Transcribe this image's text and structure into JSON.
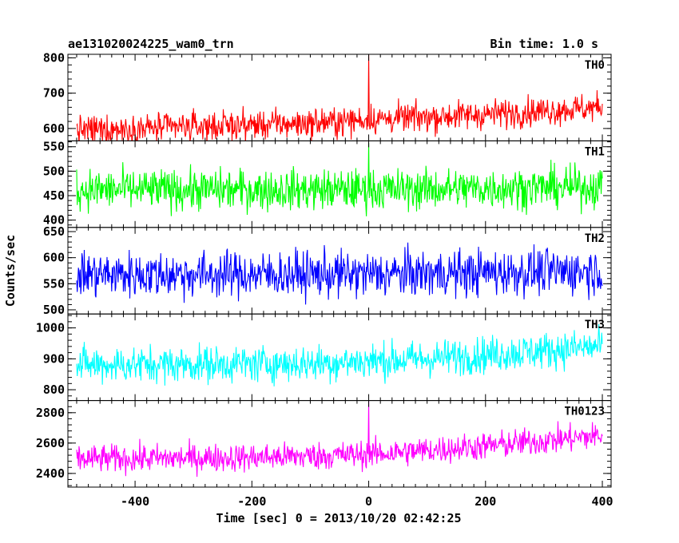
{
  "header": {
    "title": "ae131020024225_wam0_trn",
    "bin_time": "Bin time: 1.0 s"
  },
  "chart_data": {
    "type": "line",
    "xlabel": "Time [sec] 0 = 2013/10/20 02:42:25",
    "ylabel": "Counts/sec",
    "xlim": [
      -515,
      415
    ],
    "x_ticks": [
      -400,
      -200,
      0,
      200,
      400
    ],
    "x_range": [
      -500,
      400
    ],
    "x_step": 1,
    "grid": false,
    "panels": [
      {
        "name": "TH0",
        "color": "#ff0000",
        "ylim": [
          565,
          810
        ],
        "y_ticks": [
          600,
          700,
          800
        ],
        "trend": [
          [
            -500,
            595
          ],
          [
            -300,
            605
          ],
          [
            -100,
            615
          ],
          [
            0,
            625
          ],
          [
            200,
            640
          ],
          [
            400,
            660
          ]
        ],
        "noise": 28,
        "spike": {
          "x": 0,
          "value": 810
        }
      },
      {
        "name": "TH1",
        "color": "#00ff00",
        "ylim": [
          385,
          562
        ],
        "y_ticks": [
          400,
          450,
          500,
          550
        ],
        "trend": [
          [
            -500,
            462
          ],
          [
            0,
            462
          ],
          [
            400,
            468
          ]
        ],
        "noise": 28,
        "spike": {
          "x": 0,
          "value": 558
        }
      },
      {
        "name": "TH2",
        "color": "#0000ff",
        "ylim": [
          492,
          658
        ],
        "y_ticks": [
          500,
          550,
          600,
          650
        ],
        "trend": [
          [
            -500,
            568
          ],
          [
            0,
            568
          ],
          [
            400,
            575
          ]
        ],
        "noise": 30,
        "spike": null
      },
      {
        "name": "TH3",
        "color": "#00ffff",
        "ylim": [
          765,
          1045
        ],
        "y_ticks": [
          800,
          900,
          1000
        ],
        "trend": [
          [
            -500,
            880
          ],
          [
            -100,
            885
          ],
          [
            100,
            900
          ],
          [
            400,
            940
          ]
        ],
        "noise": 40,
        "spike": null
      },
      {
        "name": "TH0123",
        "color": "#ff00ff",
        "ylim": [
          2310,
          2880
        ],
        "y_ticks": [
          2400,
          2600,
          2800
        ],
        "trend": [
          [
            -500,
            2495
          ],
          [
            -200,
            2505
          ],
          [
            0,
            2525
          ],
          [
            200,
            2580
          ],
          [
            400,
            2650
          ]
        ],
        "noise": 62,
        "spike": {
          "x": 0,
          "value": 2880
        }
      }
    ]
  }
}
